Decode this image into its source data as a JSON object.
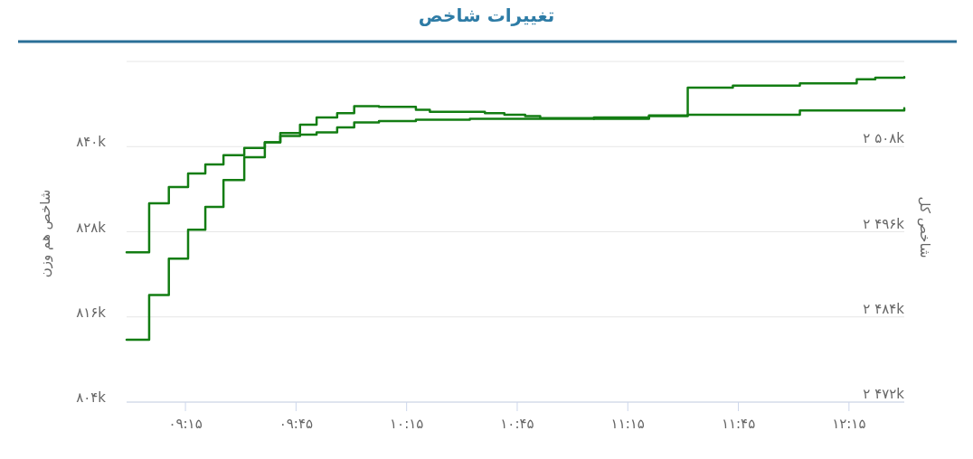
{
  "chart_data": {
    "type": "step",
    "title": "تغییرات شاخص",
    "ylabel": "شاخص هم وزن",
    "y2label": "شاخص کل",
    "grid": "y",
    "xlim": [
      8.984,
      12.5
    ],
    "xticks": [
      {
        "value": 9.25,
        "label": "۰۹:۱۵"
      },
      {
        "value": 9.75,
        "label": "۰۹:۴۵"
      },
      {
        "value": 10.25,
        "label": "۱۰:۱۵"
      },
      {
        "value": 10.75,
        "label": "۱۰:۴۵"
      },
      {
        "value": 11.25,
        "label": "۱۱:۱۵"
      },
      {
        "value": 11.75,
        "label": "۱۱:۴۵"
      },
      {
        "value": 12.25,
        "label": "۱۲:۱۵"
      }
    ],
    "ylim": [
      804000,
      852000
    ],
    "yticks": [
      {
        "value": 804000,
        "label": "۸۰۴k"
      },
      {
        "value": 816000,
        "label": "۸۱۶k"
      },
      {
        "value": 828000,
        "label": "۸۲۸k"
      },
      {
        "value": 840000,
        "label": "۸۴۰k"
      },
      {
        "value": 852000,
        "label": null
      }
    ],
    "y2lim": [
      2472000,
      2520000
    ],
    "y2ticks": [
      {
        "value": 2472000,
        "label": "۲ ۴۷۲k"
      },
      {
        "value": 2484000,
        "label": "۲ ۴۸۴k"
      },
      {
        "value": 2496000,
        "label": "۲ ۴۹۶k"
      },
      {
        "value": 2508000,
        "label": "۲ ۵۰۸k"
      },
      {
        "value": 2520000,
        "label": null
      }
    ],
    "series": [
      {
        "color": "#137d13",
        "axis": "y",
        "x": [
          8.984,
          9.086,
          9.175,
          9.262,
          9.34,
          9.422,
          9.516,
          9.609,
          9.679,
          9.768,
          9.843,
          9.936,
          10.013,
          10.125,
          10.292,
          10.355,
          10.604,
          10.692,
          10.786,
          10.854,
          11.097,
          11.346,
          11.521,
          12.028,
          12.5
        ],
        "values": [
          825100,
          832000,
          834300,
          836200,
          837500,
          838800,
          839800,
          840600,
          841900,
          843100,
          844100,
          844700,
          845700,
          845600,
          845200,
          844900,
          844700,
          844500,
          844300,
          844000,
          843900,
          844300,
          844500,
          845100,
          845400
        ]
      },
      {
        "color": "#137d13",
        "axis": "y2",
        "x": [
          8.984,
          9.086,
          9.175,
          9.262,
          9.34,
          9.422,
          9.516,
          9.609,
          9.679,
          9.768,
          9.843,
          9.936,
          10.013,
          10.125,
          10.292,
          10.536,
          11.097,
          11.346,
          11.521,
          11.725,
          12.028,
          12.285,
          12.369,
          12.5
        ],
        "values": [
          2480800,
          2487100,
          2492200,
          2496300,
          2499500,
          2503300,
          2506500,
          2508600,
          2509500,
          2509700,
          2510000,
          2510700,
          2511400,
          2511600,
          2511800,
          2511900,
          2512100,
          2512400,
          2516300,
          2516600,
          2516900,
          2517500,
          2517700,
          2517800
        ]
      }
    ]
  }
}
